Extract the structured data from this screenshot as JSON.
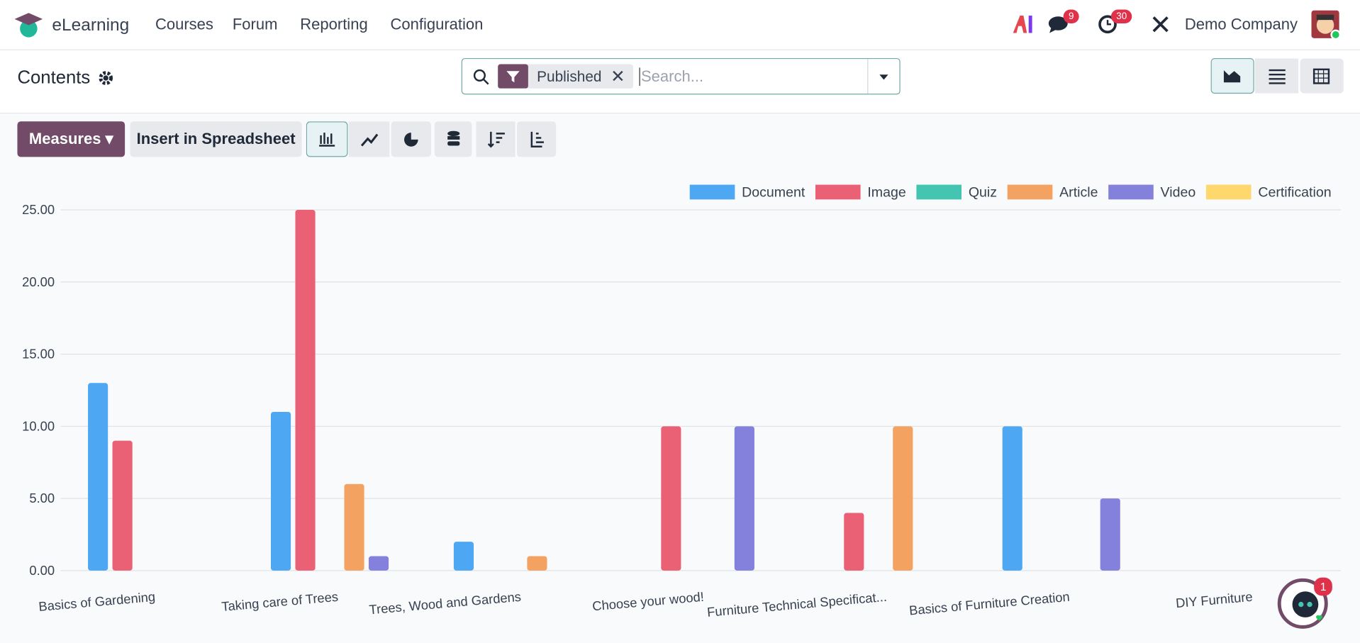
{
  "navbar": {
    "brand": "eLearning",
    "menu": [
      "Courses",
      "Forum",
      "Reporting",
      "Configuration"
    ],
    "messages_badge": 9,
    "activities_badge": 30,
    "company": "Demo Company"
  },
  "control_panel": {
    "title": "Contents",
    "facet": "Published",
    "search_placeholder": "Search...",
    "measures": "Measures",
    "insert": "Insert in Spreadsheet"
  },
  "chat_badge": 1,
  "chart_data": {
    "type": "bar",
    "categories": [
      "Basics of Gardening",
      "Taking care of Trees",
      "Trees, Wood and Gardens",
      "Choose your wood!",
      "Furniture Technical Specificat...",
      "Basics of Furniture Creation",
      "DIY Furniture"
    ],
    "series": [
      {
        "name": "Document",
        "color": "#4ea7f2",
        "values": [
          13,
          11,
          2,
          0,
          0,
          10,
          0
        ]
      },
      {
        "name": "Image",
        "color": "#ea6175",
        "values": [
          9,
          25,
          0,
          10,
          4,
          0,
          0
        ]
      },
      {
        "name": "Quiz",
        "color": "#43c5b1",
        "values": [
          0,
          0,
          0,
          0,
          0,
          0,
          0
        ]
      },
      {
        "name": "Article",
        "color": "#f4a261",
        "values": [
          0,
          6,
          1,
          0,
          10,
          0,
          0
        ]
      },
      {
        "name": "Video",
        "color": "#8481dd",
        "values": [
          0,
          1,
          0,
          10,
          0,
          5,
          0
        ]
      },
      {
        "name": "Certification",
        "color": "#ffd86d",
        "values": [
          0,
          0,
          0,
          0,
          0,
          0,
          0
        ]
      }
    ],
    "ylim": [
      0,
      25
    ],
    "yticks": [
      {
        "value": 0,
        "label": "0.00"
      },
      {
        "value": 5,
        "label": "5.00"
      },
      {
        "value": 10,
        "label": "10.00"
      },
      {
        "value": 15,
        "label": "15.00"
      },
      {
        "value": 20,
        "label": "20.00"
      },
      {
        "value": 25,
        "label": "25.00"
      }
    ],
    "grid": true,
    "legend": "top-right"
  }
}
